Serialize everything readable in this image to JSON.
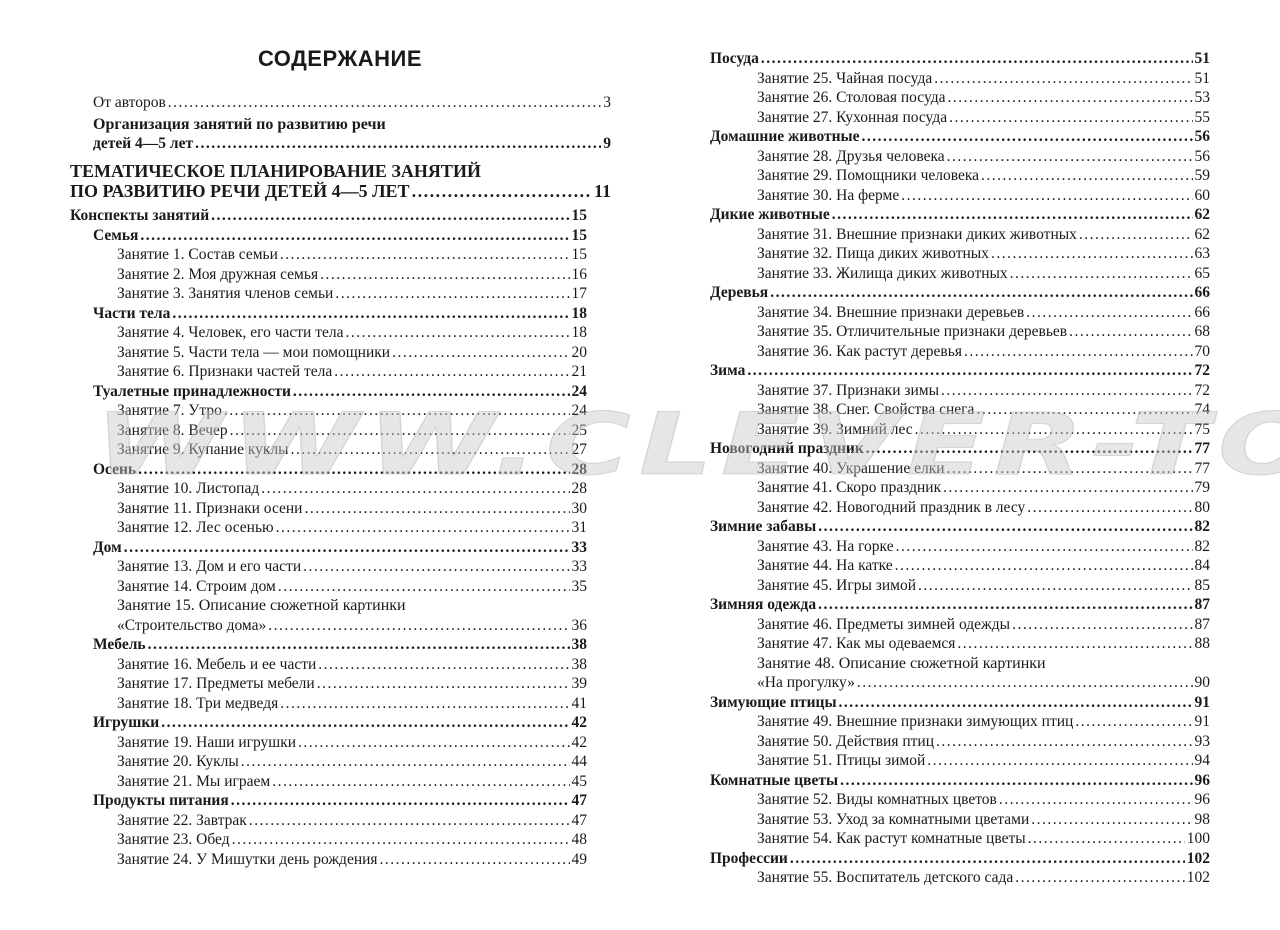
{
  "title": "СОДЕРЖАНИЕ",
  "watermark": "WWW.CLEVER-TOY.RU",
  "left_top": [
    {
      "lines": [
        "От авторов"
      ],
      "page": "3",
      "level": 1,
      "bold": false
    },
    {
      "lines": [
        "Организация занятий по развитию речи",
        "детей 4—5 лет"
      ],
      "page": "9",
      "level": 1,
      "bold": true
    },
    {
      "lines": [
        "ТЕМАТИЧЕСКОЕ ПЛАНИРОВАНИЕ ЗАНЯТИЙ",
        "ПО РАЗВИТИЮ РЕЧИ ДЕТЕЙ 4—5 ЛЕТ"
      ],
      "page": "11",
      "level": 0,
      "bold": true,
      "part": true
    }
  ],
  "left_list": [
    {
      "lines": [
        "Конспекты занятий"
      ],
      "page": "15",
      "level": 0
    },
    {
      "lines": [
        "Семья"
      ],
      "page": "15",
      "level": 1
    },
    {
      "lines": [
        "Занятие 1. Состав семьи"
      ],
      "page": "15",
      "level": 2
    },
    {
      "lines": [
        "Занятие 2. Моя дружная семья"
      ],
      "page": "16",
      "level": 2
    },
    {
      "lines": [
        "Занятие 3. Занятия членов семьи"
      ],
      "page": "17",
      "level": 2
    },
    {
      "lines": [
        "Части тела"
      ],
      "page": "18",
      "level": 1
    },
    {
      "lines": [
        "Занятие 4. Человек, его части тела"
      ],
      "page": "18",
      "level": 2
    },
    {
      "lines": [
        "Занятие 5. Части тела — мои помощники"
      ],
      "page": "20",
      "level": 2
    },
    {
      "lines": [
        "Занятие 6. Признаки частей тела"
      ],
      "page": "21",
      "level": 2
    },
    {
      "lines": [
        "Туалетные принадлежности"
      ],
      "page": "24",
      "level": 1
    },
    {
      "lines": [
        "Занятие 7. Утро"
      ],
      "page": "24",
      "level": 2
    },
    {
      "lines": [
        "Занятие 8. Вечер"
      ],
      "page": "25",
      "level": 2
    },
    {
      "lines": [
        "Занятие 9. Купание куклы"
      ],
      "page": "27",
      "level": 2
    },
    {
      "lines": [
        "Осень"
      ],
      "page": "28",
      "level": 1
    },
    {
      "lines": [
        "Занятие 10. Листопад"
      ],
      "page": "28",
      "level": 2
    },
    {
      "lines": [
        "Занятие 11. Признаки осени"
      ],
      "page": "30",
      "level": 2
    },
    {
      "lines": [
        "Занятие 12. Лес осенью"
      ],
      "page": "31",
      "level": 2
    },
    {
      "lines": [
        "Дом"
      ],
      "page": "33",
      "level": 1
    },
    {
      "lines": [
        "Занятие 13. Дом и его части"
      ],
      "page": "33",
      "level": 2
    },
    {
      "lines": [
        "Занятие 14. Строим дом"
      ],
      "page": "35",
      "level": 2
    },
    {
      "lines": [
        "Занятие 15. Описание сюжетной картинки",
        "«Строительство дома»"
      ],
      "page": "36",
      "level": 2
    },
    {
      "lines": [
        "Мебель"
      ],
      "page": "38",
      "level": 1
    },
    {
      "lines": [
        "Занятие 16. Мебель и ее части"
      ],
      "page": "38",
      "level": 2
    },
    {
      "lines": [
        "Занятие 17. Предметы мебели"
      ],
      "page": "39",
      "level": 2
    },
    {
      "lines": [
        "Занятие 18. Три медведя"
      ],
      "page": "41",
      "level": 2
    },
    {
      "lines": [
        "Игрушки"
      ],
      "page": "42",
      "level": 1
    },
    {
      "lines": [
        "Занятие 19. Наши игрушки"
      ],
      "page": "42",
      "level": 2
    },
    {
      "lines": [
        "Занятие 20. Куклы"
      ],
      "page": "44",
      "level": 2
    },
    {
      "lines": [
        "Занятие 21. Мы играем"
      ],
      "page": "45",
      "level": 2
    },
    {
      "lines": [
        "Продукты питания"
      ],
      "page": "47",
      "level": 1
    },
    {
      "lines": [
        "Занятие 22. Завтрак"
      ],
      "page": "47",
      "level": 2
    },
    {
      "lines": [
        "Занятие 23. Обед"
      ],
      "page": "48",
      "level": 2
    },
    {
      "lines": [
        "Занятие 24. У Мишутки день рождения"
      ],
      "page": "49",
      "level": 2
    }
  ],
  "right_list": [
    {
      "lines": [
        "Посуда"
      ],
      "page": "51",
      "level": 0
    },
    {
      "lines": [
        "Занятие 25. Чайная посуда"
      ],
      "page": "51",
      "level": 2
    },
    {
      "lines": [
        "Занятие 26. Столовая посуда"
      ],
      "page": "53",
      "level": 2
    },
    {
      "lines": [
        "Занятие 27. Кухонная посуда"
      ],
      "page": "55",
      "level": 2
    },
    {
      "lines": [
        "Домашние животные"
      ],
      "page": "56",
      "level": 0
    },
    {
      "lines": [
        "Занятие 28. Друзья человека"
      ],
      "page": "56",
      "level": 2
    },
    {
      "lines": [
        "Занятие 29. Помощники человека"
      ],
      "page": "59",
      "level": 2
    },
    {
      "lines": [
        "Занятие 30. На ферме"
      ],
      "page": "60",
      "level": 2
    },
    {
      "lines": [
        "Дикие животные"
      ],
      "page": "62",
      "level": 0
    },
    {
      "lines": [
        "Занятие 31. Внешние признаки диких животных"
      ],
      "page": "62",
      "level": 2
    },
    {
      "lines": [
        "Занятие 32. Пища диких животных"
      ],
      "page": "63",
      "level": 2
    },
    {
      "lines": [
        "Занятие 33. Жилища диких животных"
      ],
      "page": "65",
      "level": 2
    },
    {
      "lines": [
        "Деревья"
      ],
      "page": "66",
      "level": 0
    },
    {
      "lines": [
        "Занятие 34. Внешние признаки деревьев"
      ],
      "page": "66",
      "level": 2
    },
    {
      "lines": [
        "Занятие 35. Отличительные признаки деревьев"
      ],
      "page": "68",
      "level": 2
    },
    {
      "lines": [
        "Занятие 36. Как растут деревья"
      ],
      "page": "70",
      "level": 2
    },
    {
      "lines": [
        "Зима"
      ],
      "page": "72",
      "level": 0
    },
    {
      "lines": [
        "Занятие 37. Признаки зимы"
      ],
      "page": "72",
      "level": 2
    },
    {
      "lines": [
        "Занятие 38. Снег. Свойства снега"
      ],
      "page": "74",
      "level": 2
    },
    {
      "lines": [
        "Занятие 39. Зимний лес"
      ],
      "page": "75",
      "level": 2
    },
    {
      "lines": [
        "Новогодний праздник"
      ],
      "page": "77",
      "level": 0
    },
    {
      "lines": [
        "Занятие 40. Украшение елки"
      ],
      "page": "77",
      "level": 2
    },
    {
      "lines": [
        "Занятие 41. Скоро праздник"
      ],
      "page": "79",
      "level": 2
    },
    {
      "lines": [
        "Занятие 42. Новогодний праздник в лесу"
      ],
      "page": "80",
      "level": 2
    },
    {
      "lines": [
        "Зимние забавы"
      ],
      "page": "82",
      "level": 0
    },
    {
      "lines": [
        "Занятие 43. На горке"
      ],
      "page": "82",
      "level": 2
    },
    {
      "lines": [
        "Занятие 44. На катке"
      ],
      "page": "84",
      "level": 2
    },
    {
      "lines": [
        "Занятие 45. Игры зимой"
      ],
      "page": "85",
      "level": 2
    },
    {
      "lines": [
        "Зимняя одежда"
      ],
      "page": "87",
      "level": 0
    },
    {
      "lines": [
        "Занятие 46. Предметы зимней одежды"
      ],
      "page": "87",
      "level": 2
    },
    {
      "lines": [
        "Занятие 47. Как мы одеваемся"
      ],
      "page": "88",
      "level": 2
    },
    {
      "lines": [
        "Занятие 48. Описание сюжетной картинки",
        "«На прогулку»"
      ],
      "page": "90",
      "level": 2
    },
    {
      "lines": [
        "Зимующие птицы"
      ],
      "page": "91",
      "level": 0
    },
    {
      "lines": [
        "Занятие 49. Внешние признаки зимующих птиц"
      ],
      "page": "91",
      "level": 2
    },
    {
      "lines": [
        "Занятие 50. Действия птиц"
      ],
      "page": "93",
      "level": 2
    },
    {
      "lines": [
        "Занятие 51. Птицы зимой"
      ],
      "page": "94",
      "level": 2
    },
    {
      "lines": [
        "Комнатные цветы"
      ],
      "page": "96",
      "level": 0
    },
    {
      "lines": [
        "Занятие 52. Виды комнатных цветов"
      ],
      "page": "96",
      "level": 2
    },
    {
      "lines": [
        "Занятие 53. Уход за комнатными цветами"
      ],
      "page": "98",
      "level": 2
    },
    {
      "lines": [
        "Занятие 54. Как растут комнатные цветы"
      ],
      "page": "100",
      "level": 2
    },
    {
      "lines": [
        "Профессии"
      ],
      "page": "102",
      "level": 0
    },
    {
      "lines": [
        "Занятие 55. Воспитатель детского сада"
      ],
      "page": "102",
      "level": 2
    }
  ]
}
